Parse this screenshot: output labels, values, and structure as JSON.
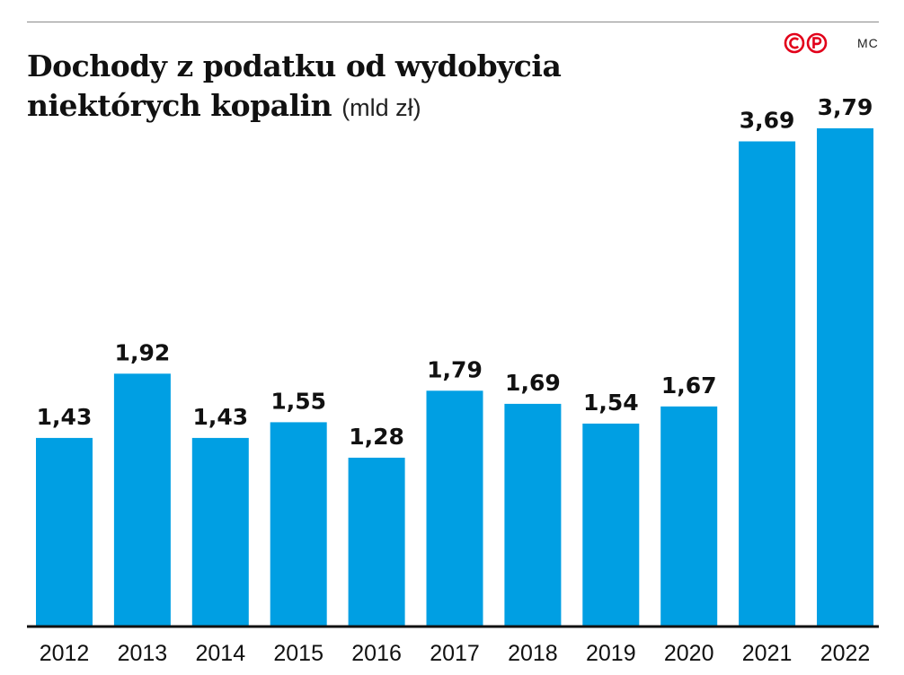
{
  "header": {
    "title_line1": "Dochody z podatku od wydobycia",
    "title_line2": "niektórych kopalin",
    "unit": "(mld zł)",
    "author": "MC",
    "brand_logo_icon": "cp-logo-icon",
    "brand_logo_text": "CP",
    "accent_color": "#e2001a"
  },
  "chart_data": {
    "type": "bar",
    "title": "Dochody z podatku od wydobycia niektórych kopalin",
    "ylabel": "(mld zł)",
    "xlabel": "",
    "categories": [
      "2012",
      "2013",
      "2014",
      "2015",
      "2016",
      "2017",
      "2018",
      "2019",
      "2020",
      "2021",
      "2022"
    ],
    "values": [
      1.43,
      1.92,
      1.43,
      1.55,
      1.28,
      1.79,
      1.69,
      1.54,
      1.67,
      3.69,
      3.79
    ],
    "value_labels": [
      "1,43",
      "1,92",
      "1,43",
      "1,55",
      "1,28",
      "1,79",
      "1,69",
      "1,54",
      "1,67",
      "3,69",
      "3,79"
    ],
    "ylim": [
      0,
      4
    ],
    "grid": false,
    "legend": "none",
    "bar_color": "#009fe3"
  }
}
